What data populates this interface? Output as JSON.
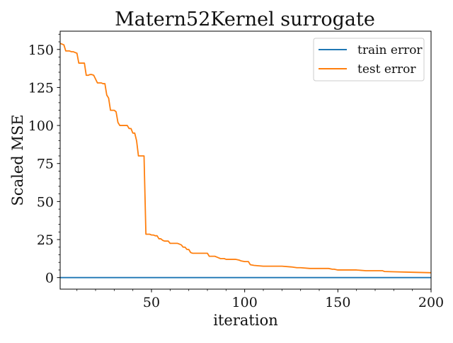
{
  "chart_data": {
    "type": "line",
    "title": "Matern52Kernel surrogate",
    "xlabel": "iteration",
    "ylabel": "Scaled MSE",
    "xlim": [
      1,
      200
    ],
    "ylim": [
      -7.6,
      162
    ],
    "xticks": [
      50,
      100,
      150,
      200
    ],
    "yticks": [
      0,
      25,
      50,
      75,
      100,
      125,
      150
    ],
    "xticks_minor": [
      10,
      20,
      30,
      40,
      60,
      70,
      80,
      90,
      110,
      120,
      130,
      140,
      160,
      170,
      180,
      190
    ],
    "yticks_minor": [
      5,
      10,
      15,
      20,
      30,
      35,
      40,
      45,
      55,
      60,
      65,
      70,
      80,
      85,
      90,
      95,
      105,
      110,
      115,
      120,
      130,
      135,
      140,
      145,
      155,
      160
    ],
    "grid": false,
    "legend_position": "top-right",
    "series": [
      {
        "name": "train error",
        "color": "#1f77b4",
        "x": [
          1,
          200
        ],
        "y": [
          0,
          0
        ]
      },
      {
        "name": "test error",
        "color": "#ff7f0e",
        "x": [
          1,
          3,
          4,
          6,
          7,
          8,
          9,
          10,
          11,
          12,
          13,
          14,
          15,
          16,
          17,
          18,
          19,
          20,
          21,
          22,
          23,
          24,
          25,
          26,
          27,
          28,
          29,
          30,
          31,
          32,
          33,
          34,
          35,
          36,
          37,
          38,
          39,
          40,
          41,
          42,
          43,
          44,
          45,
          46,
          47,
          48,
          49,
          50,
          51,
          52,
          53,
          54,
          55,
          56,
          57,
          58,
          59,
          60,
          61,
          62,
          63,
          64,
          65,
          66,
          67,
          68,
          69,
          70,
          71,
          72,
          73,
          74,
          75,
          76,
          77,
          78,
          79,
          80,
          81,
          82,
          83,
          84,
          85,
          86,
          87,
          88,
          89,
          90,
          92,
          95,
          97,
          98,
          100,
          102,
          103,
          105,
          110,
          115,
          120,
          125,
          128,
          130,
          135,
          140,
          145,
          147,
          148,
          150,
          155,
          160,
          165,
          170,
          174,
          175,
          180,
          190,
          200
        ],
        "y": [
          154,
          153,
          149,
          149,
          148.5,
          148.5,
          148,
          147.5,
          141,
          141,
          141,
          141,
          133,
          133,
          133.5,
          133.5,
          133,
          130.5,
          128,
          128,
          128,
          127.5,
          127.5,
          120,
          118,
          110,
          110,
          110,
          109,
          102,
          100,
          100,
          100,
          100,
          100,
          98,
          98,
          95,
          95,
          90,
          80,
          80,
          80,
          80,
          28.5,
          28.5,
          28.5,
          28,
          28,
          27.5,
          27.5,
          25.5,
          25.5,
          24.5,
          24,
          24,
          24,
          22.5,
          22.5,
          22.5,
          22.5,
          22.5,
          22,
          21.5,
          20,
          20,
          18.5,
          18.5,
          16.5,
          16,
          16,
          16,
          16,
          16,
          16,
          16,
          16,
          16,
          14,
          14,
          14,
          14,
          13.5,
          13,
          12.5,
          12.5,
          12.5,
          12,
          12,
          12,
          11.5,
          11,
          10.5,
          10.5,
          8.5,
          8,
          7.5,
          7.5,
          7.5,
          7,
          6.5,
          6.5,
          6,
          6,
          6,
          5.5,
          5.5,
          5,
          5,
          5,
          4.5,
          4.5,
          4.5,
          4,
          3.8,
          3.5,
          3.2
        ]
      }
    ]
  }
}
